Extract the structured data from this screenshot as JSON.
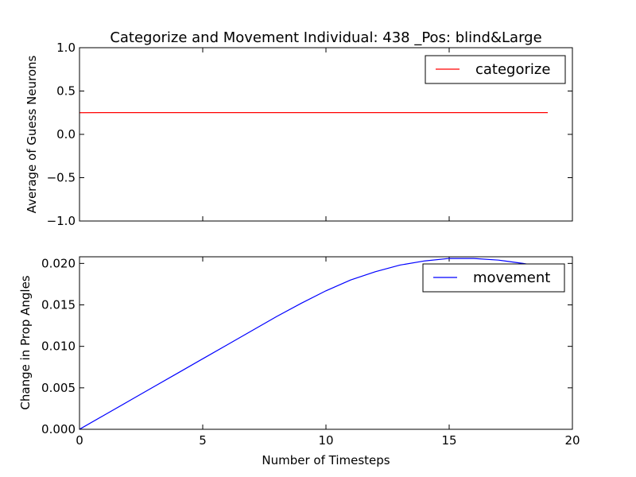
{
  "chart_data": [
    {
      "type": "line",
      "title": "Categorize and Movement Individual: 438 _Pos: blind&Large",
      "xlabel": "",
      "ylabel": "Average of Guess Neurons",
      "xlim": [
        0,
        20
      ],
      "ylim": [
        -1.0,
        1.0
      ],
      "yticks": [
        "1.0",
        "0.5",
        "0.0",
        "−0.5",
        "−1.0"
      ],
      "ytick_values": [
        1.0,
        0.5,
        0.0,
        -0.5,
        -1.0
      ],
      "xtick_values": [
        0,
        5,
        10,
        15,
        20
      ],
      "show_xticklabels": false,
      "legend_position": "top-right",
      "series": [
        {
          "name": "categorize",
          "color": "#ff0000",
          "x": [
            0,
            1,
            2,
            3,
            4,
            5,
            6,
            7,
            8,
            9,
            10,
            11,
            12,
            13,
            14,
            15,
            16,
            17,
            18,
            19
          ],
          "y": [
            0.25,
            0.251,
            0.251,
            0.251,
            0.251,
            0.251,
            0.251,
            0.251,
            0.251,
            0.251,
            0.251,
            0.251,
            0.251,
            0.251,
            0.251,
            0.251,
            0.251,
            0.251,
            0.251,
            0.251
          ]
        }
      ]
    },
    {
      "type": "line",
      "title": "",
      "xlabel": "Number of Timesteps",
      "ylabel": "Change in Prop Angles",
      "xlim": [
        0,
        20
      ],
      "ylim": [
        0.0,
        0.0208
      ],
      "yticks": [
        "0.020",
        "0.015",
        "0.010",
        "0.005",
        "0.000"
      ],
      "ytick_values": [
        0.02,
        0.015,
        0.01,
        0.005,
        0.0
      ],
      "xticks": [
        "0",
        "5",
        "10",
        "15",
        "20"
      ],
      "xtick_values": [
        0,
        5,
        10,
        15,
        20
      ],
      "show_xticklabels": true,
      "legend_position": "top-right",
      "series": [
        {
          "name": "movement",
          "color": "#0000ff",
          "x": [
            0,
            1,
            2,
            3,
            4,
            5,
            6,
            7,
            8,
            9,
            10,
            11,
            12,
            13,
            14,
            15,
            16,
            17,
            18,
            19
          ],
          "y": [
            0.0,
            0.0017,
            0.0034,
            0.0051,
            0.0068,
            0.0085,
            0.0102,
            0.0119,
            0.0136,
            0.0152,
            0.0167,
            0.018,
            0.019,
            0.0198,
            0.0203,
            0.0206,
            0.0206,
            0.0204,
            0.02,
            0.0195
          ]
        }
      ]
    }
  ]
}
